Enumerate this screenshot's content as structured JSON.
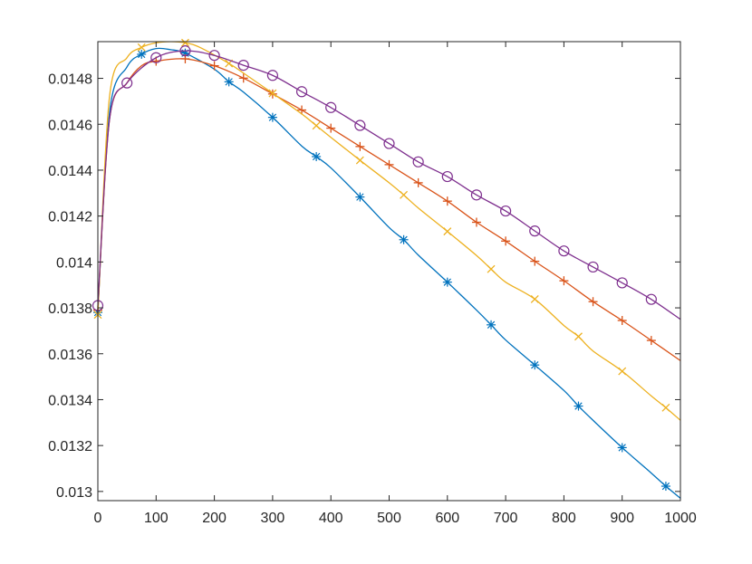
{
  "chart_data": {
    "type": "line",
    "title": "",
    "xlabel": "",
    "ylabel": "",
    "xlim": [
      0,
      1000
    ],
    "ylim": [
      0.01296,
      0.01496
    ],
    "grid": false,
    "legend": "none",
    "xticks": [
      0,
      100,
      200,
      300,
      400,
      500,
      600,
      700,
      800,
      900,
      1000
    ],
    "xtick_labels": [
      "0",
      "100",
      "200",
      "300",
      "400",
      "500",
      "600",
      "700",
      "800",
      "900",
      "1000"
    ],
    "yticks": [
      0.013,
      0.0132,
      0.0134,
      0.0136,
      0.0138,
      0.014,
      0.0142,
      0.0144,
      0.0146,
      0.0148
    ],
    "ytick_labels": [
      "0.013",
      "0.0132",
      "0.0134",
      "0.0136",
      "0.0138",
      "0.014",
      "0.0142",
      "0.0144",
      "0.0146",
      "0.0148"
    ],
    "series": [
      {
        "color": "#0072BD",
        "marker": "asterisk",
        "x": [
          0,
          20,
          50,
          75,
          100,
          125,
          150,
          200,
          225,
          250,
          300,
          350,
          375,
          400,
          450,
          500,
          525,
          550,
          600,
          650,
          675,
          700,
          750,
          800,
          825,
          850,
          900,
          950,
          975,
          1000
        ],
        "y": [
          0.01378,
          0.01465,
          0.01485,
          0.014905,
          0.01493,
          0.014925,
          0.01491,
          0.01484,
          0.014785,
          0.01474,
          0.01463,
          0.014505,
          0.014459,
          0.01441,
          0.014283,
          0.01415,
          0.014097,
          0.01403,
          0.013912,
          0.01379,
          0.013726,
          0.01366,
          0.013551,
          0.01344,
          0.013372,
          0.01331,
          0.013191,
          0.01308,
          0.013023,
          0.01297
        ],
        "marker_x": [
          0,
          75,
          150,
          225,
          300,
          375,
          450,
          525,
          600,
          675,
          750,
          825,
          900,
          975
        ],
        "marker_y": [
          0.01378,
          0.014905,
          0.01491,
          0.014785,
          0.01463,
          0.014459,
          0.014283,
          0.014097,
          0.013912,
          0.013726,
          0.013551,
          0.013372,
          0.013191,
          0.013023
        ]
      },
      {
        "color": "#D95319",
        "marker": "plus",
        "x": [
          0,
          20,
          50,
          75,
          100,
          150,
          200,
          250,
          300,
          350,
          400,
          450,
          500,
          550,
          600,
          650,
          700,
          750,
          800,
          850,
          900,
          950,
          1000
        ],
        "y": [
          0.01379,
          0.01462,
          0.01478,
          0.014855,
          0.014875,
          0.014885,
          0.014855,
          0.014801,
          0.014732,
          0.014662,
          0.014583,
          0.014503,
          0.014424,
          0.014345,
          0.014265,
          0.014173,
          0.014091,
          0.014003,
          0.013918,
          0.013827,
          0.013745,
          0.013658,
          0.01357
        ],
        "marker_x": [
          0,
          100,
          150,
          200,
          250,
          300,
          350,
          400,
          450,
          500,
          550,
          600,
          650,
          700,
          750,
          800,
          850,
          900,
          950
        ],
        "marker_y": [
          0.01379,
          0.014875,
          0.014885,
          0.014855,
          0.014801,
          0.014732,
          0.014662,
          0.014583,
          0.014503,
          0.014424,
          0.014345,
          0.014265,
          0.014173,
          0.014091,
          0.014003,
          0.013918,
          0.013827,
          0.013745,
          0.013658
        ]
      },
      {
        "color": "#EDB120",
        "marker": "x",
        "x": [
          0,
          20,
          50,
          75,
          100,
          125,
          150,
          175,
          225,
          250,
          300,
          350,
          375,
          400,
          450,
          500,
          525,
          550,
          600,
          650,
          675,
          700,
          750,
          800,
          825,
          850,
          900,
          950,
          975,
          1000
        ],
        "y": [
          0.01377,
          0.01472,
          0.01489,
          0.014935,
          0.014955,
          0.01496,
          0.014955,
          0.014935,
          0.014865,
          0.014823,
          0.014735,
          0.014645,
          0.014594,
          0.014543,
          0.014443,
          0.014345,
          0.014292,
          0.014235,
          0.014133,
          0.014028,
          0.013969,
          0.013912,
          0.013838,
          0.013723,
          0.013675,
          0.013612,
          0.013524,
          0.013416,
          0.013365,
          0.01331
        ],
        "marker_x": [
          0,
          75,
          150,
          225,
          300,
          375,
          450,
          525,
          600,
          675,
          750,
          825,
          900,
          975
        ],
        "marker_y": [
          0.01377,
          0.014935,
          0.014955,
          0.014865,
          0.014735,
          0.014594,
          0.014443,
          0.014292,
          0.014133,
          0.013969,
          0.013838,
          0.013675,
          0.013524,
          0.013365
        ]
      },
      {
        "color": "#7E2F8E",
        "marker": "circle",
        "x": [
          0,
          20,
          50,
          100,
          150,
          200,
          250,
          300,
          350,
          400,
          450,
          500,
          550,
          600,
          650,
          700,
          750,
          800,
          850,
          900,
          950,
          1000
        ],
        "y": [
          0.01381,
          0.01462,
          0.01478,
          0.01489,
          0.01492,
          0.0149,
          0.014857,
          0.014813,
          0.014742,
          0.014673,
          0.014595,
          0.014516,
          0.014436,
          0.014372,
          0.014292,
          0.014222,
          0.014135,
          0.014048,
          0.013978,
          0.013909,
          0.013837,
          0.01375
        ],
        "marker_x": [
          0,
          50,
          100,
          150,
          200,
          250,
          300,
          350,
          400,
          450,
          500,
          550,
          600,
          650,
          700,
          750,
          800,
          850,
          900,
          950
        ],
        "marker_y": [
          0.01381,
          0.01478,
          0.01489,
          0.01492,
          0.0149,
          0.014857,
          0.014813,
          0.014742,
          0.014673,
          0.014595,
          0.014516,
          0.014436,
          0.014372,
          0.014292,
          0.014222,
          0.014135,
          0.014048,
          0.013978,
          0.013909,
          0.013837
        ]
      }
    ]
  }
}
